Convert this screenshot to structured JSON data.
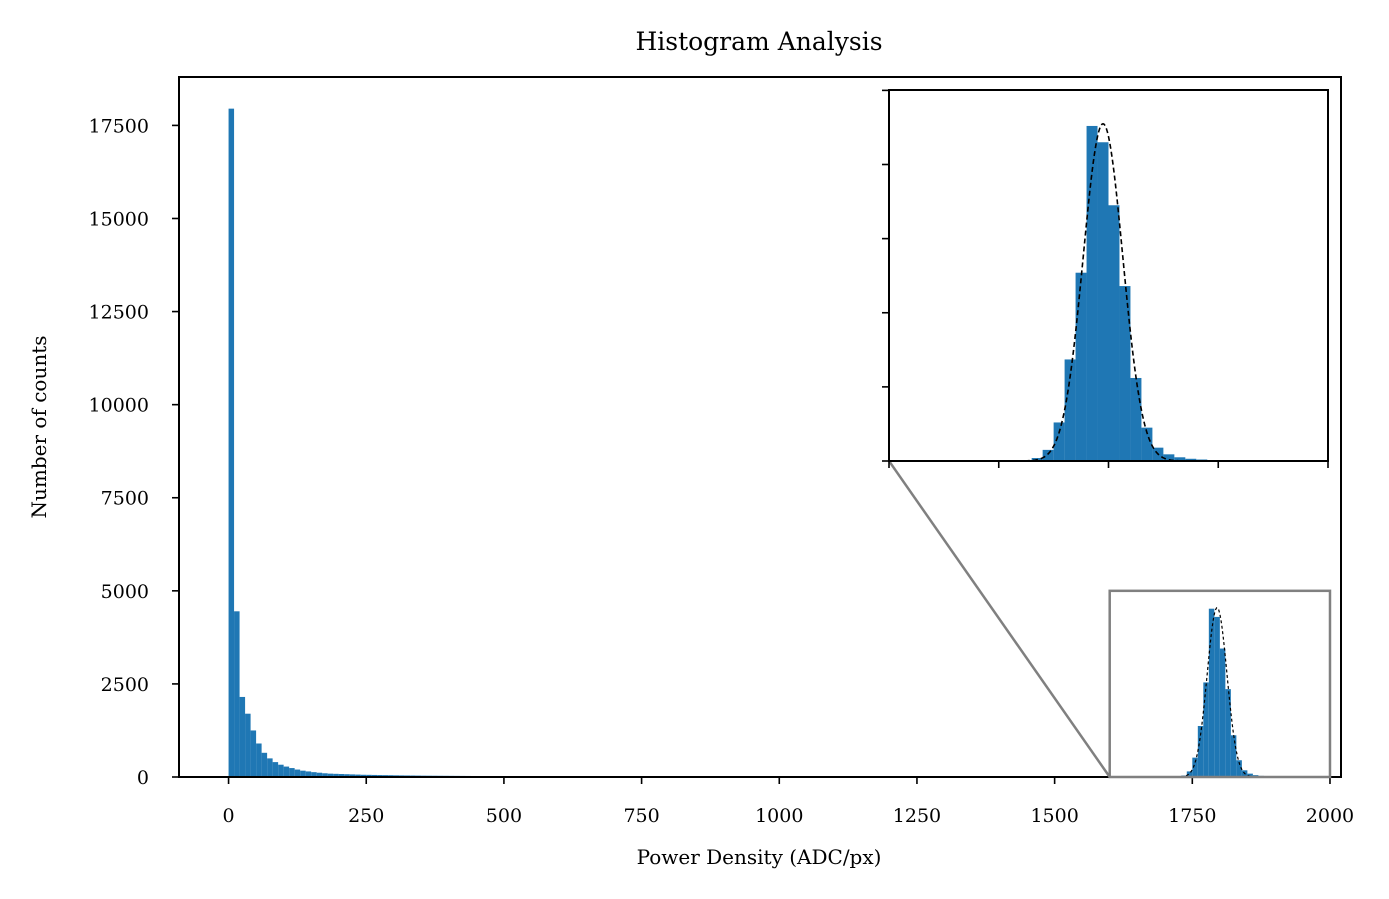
{
  "chart_data": {
    "type": "bar",
    "title": "Histogram Analysis",
    "xlabel": "Power Density (ADC/px)",
    "ylabel": "Number of counts",
    "xlim": [
      -90,
      2020
    ],
    "ylim": [
      0,
      18800
    ],
    "xticks": [
      "0",
      "250",
      "500",
      "750",
      "1000",
      "1250",
      "1500",
      "1750",
      "2000"
    ],
    "xtick_values": [
      0,
      250,
      500,
      750,
      1000,
      1250,
      1500,
      1750,
      2000
    ],
    "yticks": [
      "0",
      "2500",
      "5000",
      "7500",
      "10000",
      "12500",
      "15000",
      "17500"
    ],
    "ytick_values": [
      0,
      2500,
      5000,
      7500,
      10000,
      12500,
      15000,
      17500
    ],
    "bar_color": "#1f77b4",
    "bin_width": 10,
    "series": [
      {
        "bins_x": [
          5,
          15,
          25,
          35,
          45,
          55,
          65,
          75,
          85,
          95,
          105,
          115,
          125,
          135,
          145,
          155,
          165,
          175,
          185,
          195,
          205,
          215,
          225,
          235,
          245,
          255,
          265,
          275,
          285,
          295,
          305,
          315,
          325,
          335,
          345,
          355,
          365,
          375,
          385,
          395,
          405,
          415,
          425,
          435,
          445,
          455,
          465,
          475,
          485,
          495,
          505,
          515,
          525,
          535,
          545,
          555,
          565,
          575,
          585,
          595,
          605,
          615,
          625,
          635,
          645,
          655,
          665,
          675,
          685,
          695,
          705,
          715,
          725,
          735,
          745,
          1725,
          1735,
          1745,
          1755,
          1765,
          1775,
          1785,
          1795,
          1805,
          1815,
          1825,
          1835,
          1845,
          1855,
          1865,
          1875,
          1885,
          1895,
          1905,
          1915
        ],
        "counts": [
          17950,
          4450,
          2150,
          1700,
          1250,
          900,
          650,
          500,
          400,
          330,
          280,
          240,
          200,
          170,
          150,
          130,
          115,
          100,
          90,
          85,
          80,
          75,
          70,
          65,
          60,
          58,
          55,
          52,
          50,
          48,
          45,
          43,
          41,
          40,
          38,
          36,
          35,
          34,
          33,
          32,
          31,
          30,
          29,
          28,
          27,
          26,
          25,
          24,
          23,
          22,
          21,
          20,
          20,
          19,
          19,
          18,
          18,
          17,
          17,
          16,
          16,
          15,
          15,
          15,
          14,
          14,
          14,
          13,
          13,
          13,
          12,
          12,
          12,
          11,
          11,
          10,
          40,
          150,
          520,
          1370,
          2540,
          4520,
          4300,
          3450,
          2360,
          1120,
          450,
          180,
          90,
          50,
          30,
          20,
          12,
          8,
          5
        ]
      }
    ],
    "gaussian_fit": {
      "mean": 1795,
      "sigma": 18,
      "amplitude": 4550
    },
    "zoom_region": {
      "xlim": [
        1600,
        2000
      ],
      "ylim": [
        0,
        5000
      ]
    },
    "inset": {
      "xlim": [
        1600,
        2000
      ],
      "ylim": [
        0,
        5000
      ]
    }
  }
}
